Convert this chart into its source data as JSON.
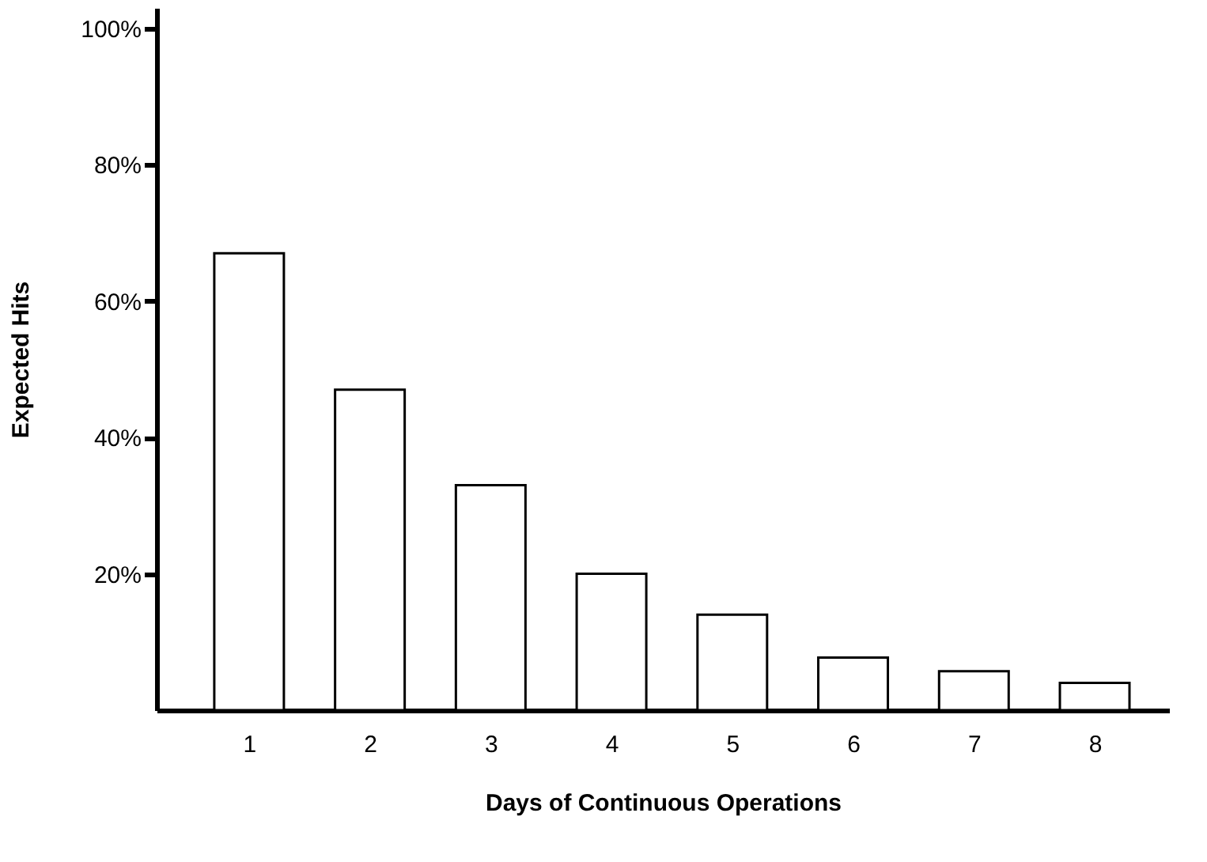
{
  "chart_data": {
    "type": "bar",
    "xlabel": "Days of Continuous Operations",
    "ylabel": "Expected Hits",
    "categories": [
      "1",
      "2",
      "3",
      "4",
      "5",
      "6",
      "7",
      "8"
    ],
    "values": [
      67,
      47,
      33,
      20,
      14,
      7.7,
      5.7,
      4
    ],
    "color": "#ffffff",
    "ylim": [
      0,
      103
    ],
    "yticks": [
      {
        "value": 20,
        "label": "20%"
      },
      {
        "value": 40,
        "label": "40%"
      },
      {
        "value": 60,
        "label": "60%"
      },
      {
        "value": 80,
        "label": "80%"
      },
      {
        "value": 100,
        "label": "100%"
      }
    ],
    "grid": false
  }
}
